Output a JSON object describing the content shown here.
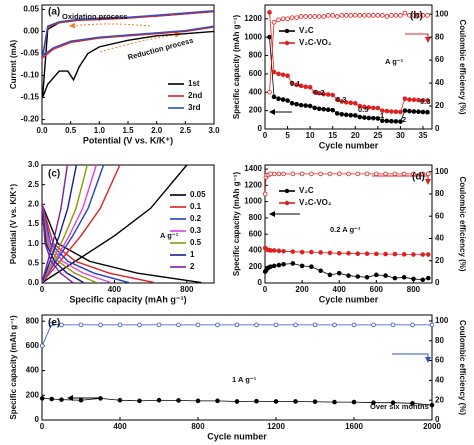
{
  "chart_data": [
    {
      "type": "line",
      "label": "(a)",
      "xlabel": "Potential (V vs. K/K⁺)",
      "ylabel": "Current (mA)",
      "annotations": [
        "Oxidation process",
        "Reduction process"
      ],
      "xlim": [
        0,
        3.0
      ],
      "xticks": [
        {
          "value": 0,
          "label": "0.0"
        },
        0.5,
        {
          "value": 1,
          "label": "1.0"
        },
        1.5,
        {
          "value": 2,
          "label": "2.0"
        },
        2.5,
        {
          "value": 3,
          "label": "3.0"
        }
      ],
      "ylim": [
        -0.21,
        0.06
      ],
      "yticks": [
        {
          "value": -0.2,
          "label": "-0.20"
        },
        -0.15,
        {
          "value": -0.1,
          "label": "-0.10"
        },
        -0.05,
        {
          "value": 0,
          "label": "0.00"
        },
        0.05
      ],
      "legend": "lower right",
      "series": [
        {
          "name": "1st",
          "color": "#000000",
          "marker": "none",
          "x": [
            3.0,
            2.5,
            2.0,
            1.5,
            1.0,
            0.8,
            0.65,
            0.55,
            0.45,
            0.3,
            0.1,
            0.01,
            0.1,
            0.3,
            0.6,
            1.0,
            1.5,
            2.0,
            2.5,
            3.0
          ],
          "values": [
            0.0,
            -0.005,
            -0.01,
            -0.02,
            -0.035,
            -0.05,
            -0.08,
            -0.11,
            -0.09,
            -0.09,
            -0.12,
            -0.15,
            0.005,
            0.02,
            0.025,
            0.03,
            0.032,
            0.035,
            0.04,
            0.045
          ]
        },
        {
          "name": "2nd",
          "color": "#e02020",
          "marker": "none",
          "x": [
            3.0,
            2.5,
            2.0,
            1.5,
            1.0,
            0.5,
            0.2,
            0.01,
            0.1,
            0.3,
            0.6,
            1.0,
            1.5,
            2.0,
            2.5,
            3.0
          ],
          "values": [
            0.01,
            0.0,
            -0.005,
            -0.01,
            -0.015,
            -0.025,
            -0.04,
            -0.06,
            0.01,
            0.02,
            0.025,
            0.027,
            0.03,
            0.035,
            0.04,
            0.045
          ]
        },
        {
          "name": "3rd",
          "color": "#3050c8",
          "marker": "none",
          "x": [
            3.0,
            2.5,
            2.0,
            1.5,
            1.0,
            0.5,
            0.2,
            0.01,
            0.1,
            0.3,
            0.6,
            1.0,
            1.5,
            2.0,
            2.5,
            3.0
          ],
          "values": [
            0.012,
            0.002,
            -0.003,
            -0.008,
            -0.013,
            -0.022,
            -0.037,
            -0.055,
            0.012,
            0.022,
            0.027,
            0.029,
            0.032,
            0.037,
            0.042,
            0.047
          ]
        }
      ]
    },
    {
      "type": "line",
      "label": "(b)",
      "xlabel": "Cycle number",
      "ylabel": "Specific capacity (mAh g⁻¹)",
      "y2label": "Coulombic efficiency (%)",
      "annotations": [
        "0.1",
        "0.2",
        "0.3",
        "0.5",
        "1",
        "2",
        "0.3",
        "A g⁻¹"
      ],
      "xlim": [
        0,
        37
      ],
      "xticks": [
        0,
        5,
        10,
        15,
        20,
        25,
        30,
        35
      ],
      "ylim": [
        0,
        1350
      ],
      "yticks": [
        0,
        200,
        400,
        600,
        800,
        1000,
        1200
      ],
      "y2lim": [
        0,
        108
      ],
      "y2ticks": [
        0,
        20,
        40,
        60,
        80,
        100
      ],
      "legend": "upper left",
      "x": [
        1,
        2,
        3,
        4,
        5,
        6,
        7,
        8,
        9,
        10,
        11,
        12,
        13,
        14,
        15,
        16,
        17,
        18,
        19,
        20,
        21,
        22,
        23,
        24,
        25,
        26,
        27,
        28,
        29,
        30,
        31,
        32,
        33,
        34,
        35,
        36
      ],
      "series": [
        {
          "name": "V₂C",
          "color": "#000000",
          "marker": "filled",
          "values": [
            1000,
            350,
            330,
            320,
            310,
            280,
            270,
            260,
            255,
            250,
            230,
            220,
            215,
            210,
            205,
            170,
            160,
            155,
            150,
            148,
            130,
            125,
            120,
            118,
            115,
            90,
            88,
            85,
            83,
            80,
            200,
            195,
            190,
            188,
            185,
            183
          ]
        },
        {
          "name": "V₂C-VO₂",
          "color": "#e02020",
          "marker": "filled",
          "values": [
            1270,
            620,
            600,
            590,
            580,
            500,
            480,
            470,
            460,
            455,
            400,
            390,
            380,
            375,
            370,
            320,
            300,
            290,
            285,
            280,
            250,
            240,
            235,
            230,
            228,
            200,
            195,
            190,
            188,
            185,
            330,
            320,
            318,
            315,
            312,
            310
          ]
        },
        {
          "color": "#e02020",
          "marker": "open",
          "axis": "y2",
          "values": [
            32,
            93,
            95,
            96,
            96,
            97,
            97,
            98,
            98,
            98,
            98,
            98,
            98,
            99,
            99,
            98,
            99,
            99,
            99,
            99,
            99,
            99,
            99,
            99,
            99,
            99,
            98,
            99,
            99,
            99,
            101,
            99,
            99,
            99,
            99,
            99
          ]
        }
      ]
    },
    {
      "type": "line",
      "label": "(c)",
      "xlabel": "Specific capacity (mAh g⁻¹)",
      "ylabel": "Potential (V vs. K/K⁺)",
      "annotations": [
        "A g⁻¹"
      ],
      "xlim": [
        0,
        950
      ],
      "xticks": [
        0,
        400,
        800
      ],
      "ylim": [
        0,
        3.0
      ],
      "yticks": [
        {
          "value": 0,
          "label": "0.0"
        },
        0.5,
        {
          "value": 1,
          "label": "1.0"
        },
        1.5,
        {
          "value": 2,
          "label": "2.0"
        },
        2.5,
        {
          "value": 3,
          "label": "3.0"
        }
      ],
      "legend": "right",
      "series": [
        {
          "name": "0.05",
          "color": "#000000",
          "marker": "none",
          "x": [
            0,
            88,
            264,
            528,
            880,
            null,
            0,
            200,
            400,
            600,
            800
          ],
          "values": [
            2.0,
            1.0,
            0.55,
            0.25,
            0.01,
            null,
            0.01,
            0.6,
            1.2,
            1.9,
            3.0
          ]
        },
        {
          "name": "0.1",
          "color": "#e02020",
          "marker": "none",
          "x": [
            0,
            62,
            186,
            372,
            620,
            null,
            0,
            108,
            215,
            322,
            430
          ],
          "values": [
            2.0,
            1.0,
            0.55,
            0.25,
            0.01,
            null,
            0.01,
            0.6,
            1.2,
            1.9,
            3.0
          ]
        },
        {
          "name": "0.2",
          "color": "#2040d0",
          "marker": "none",
          "x": [
            0,
            48,
            144,
            288,
            480,
            null,
            0,
            85,
            170,
            255,
            340
          ],
          "values": [
            2.0,
            1.0,
            0.55,
            0.25,
            0.01,
            null,
            0.01,
            0.6,
            1.2,
            1.9,
            3.0
          ]
        },
        {
          "name": "0.3",
          "color": "#e040e0",
          "marker": "none",
          "x": [
            0,
            38,
            114,
            228,
            380,
            null,
            0,
            75,
            150,
            225,
            300
          ],
          "values": [
            2.0,
            1.0,
            0.55,
            0.25,
            0.01,
            null,
            0.01,
            0.6,
            1.2,
            1.9,
            3.0
          ]
        },
        {
          "name": "0.5",
          "color": "#8a9a00",
          "marker": "none",
          "x": [
            0,
            30,
            90,
            180,
            300,
            null,
            0,
            62,
            125,
            188,
            250
          ],
          "values": [
            2.0,
            1.0,
            0.55,
            0.25,
            0.01,
            null,
            0.01,
            0.6,
            1.2,
            1.9,
            3.0
          ]
        },
        {
          "name": "1",
          "color": "#1a1a9a",
          "marker": "none",
          "x": [
            0,
            23,
            69,
            138,
            230,
            null,
            0,
            48,
            95,
            142,
            190
          ],
          "values": [
            2.0,
            1.0,
            0.55,
            0.25,
            0.01,
            null,
            0.01,
            0.6,
            1.2,
            1.9,
            3.0
          ]
        },
        {
          "name": "2",
          "color": "#7b1fa2",
          "marker": "none",
          "x": [
            0,
            17,
            51,
            102,
            170,
            null,
            0,
            35,
            70,
            105,
            140
          ],
          "values": [
            2.0,
            1.0,
            0.55,
            0.25,
            0.01,
            null,
            0.01,
            0.6,
            1.2,
            1.9,
            3.0
          ]
        }
      ]
    },
    {
      "type": "line",
      "label": "(d)",
      "xlabel": "Cycle number",
      "ylabel": "Specific capacity (mAh g⁻¹)",
      "y2label": "Coulombic efficiency (%)",
      "annotations": [
        "0.2 A g⁻¹"
      ],
      "xlim": [
        0,
        900
      ],
      "xticks": [
        0,
        200,
        400,
        600,
        800
      ],
      "ylim": [
        0,
        1450
      ],
      "yticks": [
        0,
        200,
        400,
        600,
        800,
        1000,
        1200,
        1400
      ],
      "y2lim": [
        0,
        106
      ],
      "y2ticks": [
        0,
        20,
        40,
        60,
        80,
        100
      ],
      "legend": "upper left",
      "x": [
        1,
        5,
        10,
        20,
        30,
        50,
        75,
        100,
        150,
        200,
        250,
        300,
        350,
        400,
        450,
        500,
        550,
        600,
        650,
        700,
        750,
        800,
        850,
        880
      ],
      "series": [
        {
          "name": "V₂C",
          "color": "#000000",
          "marker": "filled",
          "values": [
            140,
            150,
            170,
            190,
            200,
            210,
            220,
            230,
            240,
            210,
            200,
            150,
            100,
            120,
            90,
            80,
            70,
            100,
            90,
            60,
            70,
            50,
            40,
            60
          ]
        },
        {
          "name": "V₂C-VO₂",
          "color": "#e02020",
          "marker": "filled",
          "values": [
            430,
            420,
            410,
            405,
            400,
            400,
            395,
            390,
            385,
            380,
            380,
            375,
            370,
            365,
            365,
            360,
            360,
            358,
            355,
            355,
            352,
            350,
            350,
            350
          ]
        },
        {
          "color": "#e02020",
          "marker": "open",
          "axis": "y2",
          "values": [
            80,
            95,
            97,
            97,
            98,
            98,
            98,
            98,
            98,
            98,
            98,
            98,
            98,
            98,
            98,
            98,
            98,
            98,
            98,
            98,
            98,
            98,
            98,
            98
          ]
        }
      ]
    },
    {
      "type": "line",
      "label": "(e)",
      "xlabel": "Cycle number",
      "ylabel": "Specific capacity (mAh g⁻¹)",
      "y2label": "Coulombic efficiency (%)",
      "annotations": [
        "1 A g⁻¹",
        "Over six months"
      ],
      "xlim": [
        0,
        2000
      ],
      "xticks": [
        0,
        400,
        800,
        1200,
        1600,
        2000
      ],
      "ylim": [
        0,
        850
      ],
      "yticks": [
        0,
        200,
        400,
        600,
        800
      ],
      "y2lim": [
        0,
        106
      ],
      "y2ticks": [
        0,
        20,
        40,
        60,
        80,
        100
      ],
      "x": [
        1,
        50,
        100,
        200,
        300,
        400,
        500,
        600,
        700,
        800,
        900,
        1000,
        1100,
        1200,
        1300,
        1400,
        1500,
        1600,
        1700,
        1800,
        1900,
        2000
      ],
      "series": [
        {
          "color": "#000000",
          "marker": "filled",
          "values": [
            175,
            170,
            165,
            160,
            175,
            160,
            155,
            160,
            158,
            155,
            155,
            150,
            152,
            150,
            150,
            148,
            145,
            145,
            140,
            140,
            135,
            120
          ]
        },
        {
          "color": "#3050c8",
          "marker": "open",
          "axis": "y2",
          "values": [
            75,
            97,
            96,
            96,
            96,
            96,
            96,
            96,
            96,
            96,
            96,
            96,
            96,
            96,
            96,
            96,
            96,
            96,
            96,
            96,
            96,
            96
          ]
        }
      ]
    }
  ]
}
